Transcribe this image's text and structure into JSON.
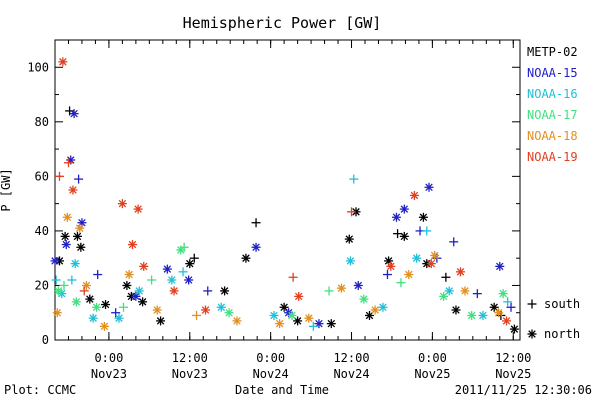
{
  "chart_data": {
    "type": "scatter",
    "title": "Hemispheric Power [GW]",
    "ylabel": "P [GW]",
    "xlabel": "Date and Time",
    "ylim": [
      0,
      110
    ],
    "xlim": [
      "2011-11-22T16:00",
      "2011-11-25T13:00"
    ],
    "y_ticks": [
      "0",
      "20",
      "40",
      "60",
      "80",
      "100"
    ],
    "y_tick_values": [
      0,
      20,
      40,
      60,
      80,
      100
    ],
    "x_ticks": [
      {
        "t": "2011-11-23T00:00",
        "time": "0:00",
        "date": "Nov23"
      },
      {
        "t": "2011-11-23T12:00",
        "time": "12:00",
        "date": "Nov23"
      },
      {
        "t": "2011-11-24T00:00",
        "time": "0:00",
        "date": "Nov24"
      },
      {
        "t": "2011-11-24T12:00",
        "time": "12:00",
        "date": "Nov24"
      },
      {
        "t": "2011-11-25T00:00",
        "time": "0:00",
        "date": "Nov25"
      },
      {
        "t": "2011-11-25T12:00",
        "time": "12:00",
        "date": "Nov25"
      }
    ],
    "grid": false,
    "legend_position": "right",
    "markers": {
      "south": "+",
      "north": "*"
    },
    "marker_legend": [
      {
        "symbol": "+",
        "label": "south"
      },
      {
        "symbol": "*",
        "label": "north"
      }
    ],
    "series": [
      {
        "name": "METP-02",
        "color": "#000000",
        "points": [
          [
            "2011-11-22T16:40",
            29,
            "north"
          ],
          [
            "2011-11-22T17:30",
            38,
            "north"
          ],
          [
            "2011-11-22T18:10",
            84,
            "south"
          ],
          [
            "2011-11-22T19:20",
            38,
            "north"
          ],
          [
            "2011-11-22T19:50",
            34,
            "north"
          ],
          [
            "2011-11-22T21:10",
            15,
            "north"
          ],
          [
            "2011-11-22T23:30",
            13,
            "north"
          ],
          [
            "2011-11-23T02:40",
            20,
            "north"
          ],
          [
            "2011-11-23T03:20",
            16,
            "north"
          ],
          [
            "2011-11-23T05:00",
            14,
            "north"
          ],
          [
            "2011-11-23T07:40",
            7,
            "north"
          ],
          [
            "2011-11-23T12:00",
            28,
            "north"
          ],
          [
            "2011-11-23T12:40",
            30,
            "south"
          ],
          [
            "2011-11-23T17:10",
            18,
            "north"
          ],
          [
            "2011-11-23T20:20",
            30,
            "north"
          ],
          [
            "2011-11-23T21:50",
            43,
            "south"
          ],
          [
            "2011-11-24T02:00",
            12,
            "north"
          ],
          [
            "2011-11-24T04:00",
            7,
            "north"
          ],
          [
            "2011-11-24T09:00",
            6,
            "north"
          ],
          [
            "2011-11-24T11:40",
            37,
            "north"
          ],
          [
            "2011-11-24T12:40",
            47,
            "north"
          ],
          [
            "2011-11-24T14:40",
            9,
            "north"
          ],
          [
            "2011-11-24T17:30",
            29,
            "north"
          ],
          [
            "2011-11-24T18:50",
            39,
            "south"
          ],
          [
            "2011-11-24T19:50",
            38,
            "north"
          ],
          [
            "2011-11-24T22:40",
            45,
            "north"
          ],
          [
            "2011-11-24T23:10",
            28,
            "north"
          ],
          [
            "2011-11-25T02:00",
            23,
            "south"
          ],
          [
            "2011-11-25T03:30",
            11,
            "north"
          ],
          [
            "2011-11-25T09:10",
            12,
            "north"
          ],
          [
            "2011-11-25T10:10",
            9,
            "south"
          ],
          [
            "2011-11-25T12:10",
            4,
            "north"
          ]
        ]
      },
      {
        "name": "NOAA-15",
        "color": "#2020c8",
        "points": [
          [
            "2011-11-22T16:00",
            29,
            "north"
          ],
          [
            "2011-11-22T17:40",
            35,
            "north"
          ],
          [
            "2011-11-22T18:20",
            66,
            "north"
          ],
          [
            "2011-11-22T18:50",
            83,
            "north"
          ],
          [
            "2011-11-22T19:30",
            59,
            "south"
          ],
          [
            "2011-11-22T20:00",
            43,
            "north"
          ],
          [
            "2011-11-22T22:20",
            24,
            "south"
          ],
          [
            "2011-11-23T01:00",
            10,
            "south"
          ],
          [
            "2011-11-23T04:00",
            16,
            "north"
          ],
          [
            "2011-11-23T08:40",
            26,
            "north"
          ],
          [
            "2011-11-23T11:50",
            22,
            "north"
          ],
          [
            "2011-11-23T14:40",
            18,
            "south"
          ],
          [
            "2011-11-23T21:50",
            34,
            "north"
          ],
          [
            "2011-11-24T02:40",
            10,
            "north"
          ],
          [
            "2011-11-24T07:10",
            6,
            "north"
          ],
          [
            "2011-11-24T13:00",
            20,
            "north"
          ],
          [
            "2011-11-24T17:20",
            24,
            "south"
          ],
          [
            "2011-11-24T18:40",
            45,
            "north"
          ],
          [
            "2011-11-24T19:50",
            48,
            "north"
          ],
          [
            "2011-11-24T22:10",
            40,
            "south"
          ],
          [
            "2011-11-24T23:30",
            56,
            "north"
          ],
          [
            "2011-11-25T00:40",
            30,
            "south"
          ],
          [
            "2011-11-25T03:10",
            36,
            "south"
          ],
          [
            "2011-11-25T06:40",
            17,
            "south"
          ],
          [
            "2011-11-25T10:00",
            27,
            "north"
          ],
          [
            "2011-11-25T11:40",
            12,
            "south"
          ]
        ]
      },
      {
        "name": "NOAA-16",
        "color": "#20c0d8",
        "points": [
          [
            "2011-11-22T16:10",
            22,
            "south"
          ],
          [
            "2011-11-22T17:00",
            17,
            "north"
          ],
          [
            "2011-11-22T18:30",
            22,
            "south"
          ],
          [
            "2011-11-22T19:00",
            28,
            "north"
          ],
          [
            "2011-11-22T21:40",
            8,
            "north"
          ],
          [
            "2011-11-23T01:30",
            8,
            "north"
          ],
          [
            "2011-11-23T04:30",
            18,
            "north"
          ],
          [
            "2011-11-23T09:20",
            22,
            "north"
          ],
          [
            "2011-11-23T11:00",
            25,
            "south"
          ],
          [
            "2011-11-23T16:40",
            12,
            "north"
          ],
          [
            "2011-11-24T00:30",
            9,
            "north"
          ],
          [
            "2011-11-24T06:20",
            5,
            "south"
          ],
          [
            "2011-11-24T11:50",
            29,
            "north"
          ],
          [
            "2011-11-24T12:20",
            59,
            "south"
          ],
          [
            "2011-11-24T16:40",
            12,
            "north"
          ],
          [
            "2011-11-24T21:40",
            30,
            "north"
          ],
          [
            "2011-11-24T23:10",
            40,
            "south"
          ],
          [
            "2011-11-25T02:30",
            18,
            "north"
          ],
          [
            "2011-11-25T07:30",
            9,
            "north"
          ],
          [
            "2011-11-25T11:10",
            14,
            "south"
          ]
        ]
      },
      {
        "name": "NOAA-17",
        "color": "#40e080",
        "points": [
          [
            "2011-11-22T16:30",
            18,
            "north"
          ],
          [
            "2011-11-22T17:20",
            20,
            "south"
          ],
          [
            "2011-11-22T19:10",
            14,
            "north"
          ],
          [
            "2011-11-22T22:10",
            12,
            "north"
          ],
          [
            "2011-11-23T02:10",
            12,
            "south"
          ],
          [
            "2011-11-23T06:20",
            22,
            "south"
          ],
          [
            "2011-11-23T10:40",
            33,
            "north"
          ],
          [
            "2011-11-23T11:10",
            34,
            "south"
          ],
          [
            "2011-11-23T17:50",
            10,
            "north"
          ],
          [
            "2011-11-24T03:10",
            9,
            "north"
          ],
          [
            "2011-11-24T08:40",
            18,
            "south"
          ],
          [
            "2011-11-24T13:50",
            15,
            "north"
          ],
          [
            "2011-11-24T19:20",
            21,
            "south"
          ],
          [
            "2011-11-25T01:40",
            16,
            "north"
          ],
          [
            "2011-11-25T05:50",
            9,
            "north"
          ],
          [
            "2011-11-25T10:30",
            17,
            "north"
          ]
        ]
      },
      {
        "name": "NOAA-18",
        "color": "#e09020",
        "points": [
          [
            "2011-11-22T16:20",
            10,
            "north"
          ],
          [
            "2011-11-22T17:50",
            45,
            "north"
          ],
          [
            "2011-11-22T19:40",
            41,
            "north"
          ],
          [
            "2011-11-22T20:40",
            20,
            "north"
          ],
          [
            "2011-11-22T23:20",
            5,
            "north"
          ],
          [
            "2011-11-23T03:00",
            24,
            "north"
          ],
          [
            "2011-11-23T07:10",
            11,
            "north"
          ],
          [
            "2011-11-23T13:00",
            9,
            "south"
          ],
          [
            "2011-11-23T19:00",
            7,
            "north"
          ],
          [
            "2011-11-24T01:20",
            6,
            "north"
          ],
          [
            "2011-11-24T05:40",
            8,
            "north"
          ],
          [
            "2011-11-24T10:30",
            19,
            "north"
          ],
          [
            "2011-11-24T15:30",
            11,
            "north"
          ],
          [
            "2011-11-24T20:30",
            24,
            "north"
          ],
          [
            "2011-11-25T00:20",
            31,
            "north"
          ],
          [
            "2011-11-25T04:50",
            18,
            "north"
          ],
          [
            "2011-11-25T09:50",
            10,
            "north"
          ]
        ]
      },
      {
        "name": "NOAA-19",
        "color": "#e04020",
        "points": [
          [
            "2011-11-22T16:40",
            60,
            "south"
          ],
          [
            "2011-11-22T17:10",
            102,
            "north"
          ],
          [
            "2011-11-22T18:00",
            65,
            "south"
          ],
          [
            "2011-11-22T18:40",
            55,
            "north"
          ],
          [
            "2011-11-22T20:20",
            18,
            "south"
          ],
          [
            "2011-11-23T02:00",
            50,
            "north"
          ],
          [
            "2011-11-23T03:30",
            35,
            "north"
          ],
          [
            "2011-11-23T04:20",
            48,
            "north"
          ],
          [
            "2011-11-23T05:10",
            27,
            "north"
          ],
          [
            "2011-11-23T09:40",
            18,
            "north"
          ],
          [
            "2011-11-23T14:20",
            11,
            "north"
          ],
          [
            "2011-11-24T03:20",
            23,
            "south"
          ],
          [
            "2011-11-24T04:10",
            16,
            "north"
          ],
          [
            "2011-11-24T12:00",
            47,
            "south"
          ],
          [
            "2011-11-24T17:50",
            27,
            "north"
          ],
          [
            "2011-11-24T21:20",
            53,
            "north"
          ],
          [
            "2011-11-24T23:50",
            28,
            "north"
          ],
          [
            "2011-11-25T04:10",
            25,
            "north"
          ],
          [
            "2011-11-25T11:00",
            7,
            "north"
          ]
        ]
      }
    ]
  },
  "footer": {
    "left": "Plot: CCMC",
    "right": "2011/11/25 12:30:06"
  }
}
